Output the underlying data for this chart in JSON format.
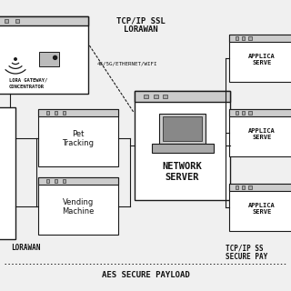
{
  "bg_color": "#f0f0f0",
  "title": "AES SECURE PAYLOAD",
  "protocol_top": "TCP/IP SSL\nLORAWAN",
  "protocol_mid": "4G/5G/ETHERNET/WIFI",
  "network_server_label": "NETWORK\nSERVER",
  "app_server_label": "APPLICA\nSERVE",
  "bottom_right_label": "TCP/IP SS\nSECURE PAY",
  "bottom_left_label": "LORAWAN",
  "line_color": "#1a1a1a",
  "box_fill": "#ffffff",
  "titlebar_fill": "#cccccc",
  "text_color": "#111111"
}
